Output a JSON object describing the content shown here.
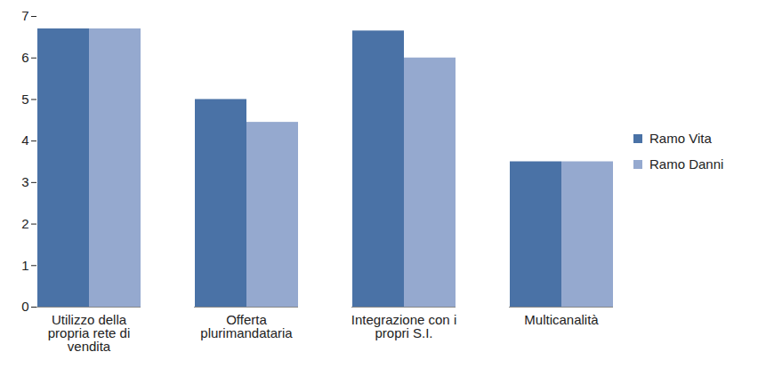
{
  "chart_data": {
    "type": "bar",
    "categories": [
      "Utilizzo della propria rete di vendita",
      "Offerta plurimandataria",
      "Integrazione con i propri S.I.",
      "Multicanalità"
    ],
    "series": [
      {
        "name": "Ramo Vita",
        "color": "#4a72a6",
        "values": [
          6.7,
          5.0,
          6.65,
          3.5
        ]
      },
      {
        "name": "Ramo Danni",
        "color": "#95a9cf",
        "values": [
          6.7,
          4.45,
          6.0,
          3.5
        ]
      }
    ],
    "ylim": [
      0,
      7
    ],
    "yticks": [
      0,
      1,
      2,
      3,
      4,
      5,
      6,
      7
    ],
    "grid": false,
    "legend": "right"
  }
}
